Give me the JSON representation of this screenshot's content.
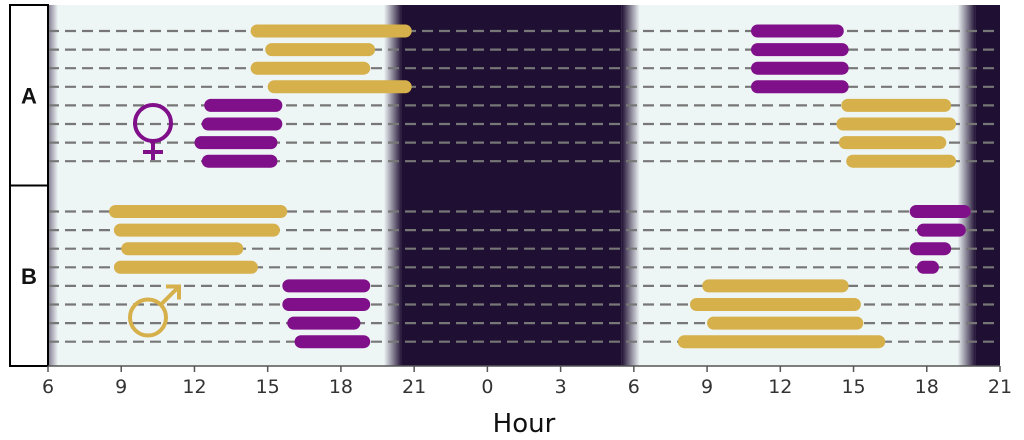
{
  "chart_data": {
    "type": "bar",
    "xlabel": "Hour",
    "x_ticks": [
      "6",
      "9",
      "12",
      "15",
      "18",
      "21",
      "0",
      "3",
      "6",
      "9",
      "12",
      "15",
      "18",
      "21"
    ],
    "xlim": [
      6,
      45
    ],
    "day_night": {
      "light_periods": [
        [
          6,
          20.5
        ],
        [
          29.5,
          44
        ]
      ],
      "dark_periods": [
        [
          20.5,
          29.5
        ],
        [
          44,
          45
        ]
      ],
      "day_color": "#eef5f5",
      "night_color": "#1f0f33"
    },
    "colors": {
      "purple": "#800f8a",
      "gold": "#d6b04a",
      "dash": "#777777"
    },
    "panels": [
      {
        "label": "A",
        "symbol": "female-symbol",
        "symbol_color": "#800f8a",
        "rows": [
          {
            "bars": [
              {
                "start": 14.3,
                "end": 20.9,
                "color": "gold"
              },
              {
                "start": 34.8,
                "end": 38.6,
                "color": "purple"
              }
            ]
          },
          {
            "bars": [
              {
                "start": 14.9,
                "end": 19.4,
                "color": "gold"
              },
              {
                "start": 34.8,
                "end": 38.8,
                "color": "purple"
              }
            ]
          },
          {
            "bars": [
              {
                "start": 14.3,
                "end": 19.2,
                "color": "gold"
              },
              {
                "start": 34.8,
                "end": 38.8,
                "color": "purple"
              }
            ]
          },
          {
            "bars": [
              {
                "start": 15.0,
                "end": 20.9,
                "color": "gold"
              },
              {
                "start": 34.8,
                "end": 38.8,
                "color": "purple"
              }
            ]
          },
          {
            "bars": [
              {
                "start": 12.4,
                "end": 15.6,
                "color": "purple"
              },
              {
                "start": 38.5,
                "end": 43.0,
                "color": "gold"
              }
            ]
          },
          {
            "bars": [
              {
                "start": 12.3,
                "end": 15.6,
                "color": "purple"
              },
              {
                "start": 38.3,
                "end": 43.2,
                "color": "gold"
              }
            ]
          },
          {
            "bars": [
              {
                "start": 12.0,
                "end": 15.4,
                "color": "purple"
              },
              {
                "start": 38.4,
                "end": 42.8,
                "color": "gold"
              }
            ]
          },
          {
            "bars": [
              {
                "start": 12.3,
                "end": 15.4,
                "color": "purple"
              },
              {
                "start": 38.7,
                "end": 43.2,
                "color": "gold"
              }
            ]
          }
        ]
      },
      {
        "label": "B",
        "symbol": "male-symbol",
        "symbol_color": "#d6b04a",
        "rows": [
          {
            "bars": [
              {
                "start": 8.5,
                "end": 15.8,
                "color": "gold"
              },
              {
                "start": 41.3,
                "end": 43.8,
                "color": "purple"
              }
            ]
          },
          {
            "bars": [
              {
                "start": 8.7,
                "end": 15.5,
                "color": "gold"
              },
              {
                "start": 41.6,
                "end": 43.6,
                "color": "purple"
              }
            ]
          },
          {
            "bars": [
              {
                "start": 9.0,
                "end": 14.0,
                "color": "gold"
              },
              {
                "start": 41.3,
                "end": 43.0,
                "color": "purple"
              }
            ]
          },
          {
            "bars": [
              {
                "start": 8.7,
                "end": 14.6,
                "color": "gold"
              },
              {
                "start": 41.6,
                "end": 42.5,
                "color": "purple"
              }
            ]
          },
          {
            "bars": [
              {
                "start": 15.6,
                "end": 19.2,
                "color": "purple"
              },
              {
                "start": 32.8,
                "end": 38.8,
                "color": "gold"
              }
            ]
          },
          {
            "bars": [
              {
                "start": 15.6,
                "end": 19.2,
                "color": "purple"
              },
              {
                "start": 32.3,
                "end": 39.3,
                "color": "gold"
              }
            ]
          },
          {
            "bars": [
              {
                "start": 15.8,
                "end": 18.8,
                "color": "purple"
              },
              {
                "start": 33.0,
                "end": 39.4,
                "color": "gold"
              }
            ]
          },
          {
            "bars": [
              {
                "start": 16.1,
                "end": 19.2,
                "color": "purple"
              },
              {
                "start": 31.8,
                "end": 40.3,
                "color": "gold"
              }
            ]
          }
        ]
      }
    ]
  }
}
